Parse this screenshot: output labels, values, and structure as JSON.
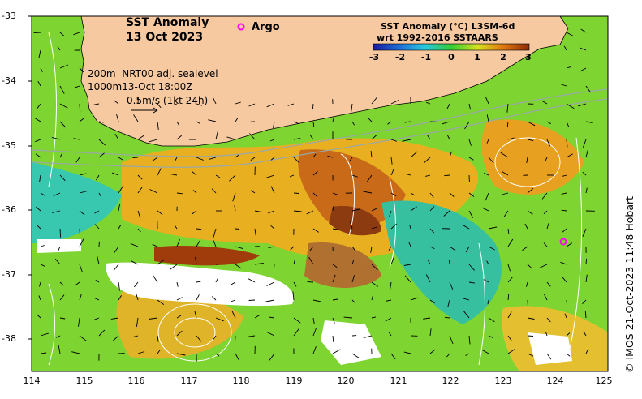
{
  "title": {
    "line1": "SST Anomaly",
    "line2": "13 Oct 2023"
  },
  "argo_label": "Argo",
  "legend": {
    "line1": "SST Anomaly (°C) L3SM-6d",
    "line2": "wrt 1992-2016 SSTAARS",
    "ticks": [
      "-3",
      "-2",
      "-1",
      "0",
      "1",
      "2",
      "3"
    ],
    "colors": [
      "#1a1aa0",
      "#1f6fd8",
      "#28c8e0",
      "#33cc33",
      "#d8e020",
      "#e07810",
      "#8c2a08"
    ]
  },
  "info": {
    "line1": "200m  NRT00 adj. sealevel",
    "line2": "1000m13-Oct 18:00Z",
    "line3": "0.5m/s (1kt 24h)"
  },
  "axes": {
    "y_ticks": [
      "-33",
      "-34",
      "-35",
      "-36",
      "-37",
      "-38"
    ],
    "x_ticks": [
      "114",
      "115",
      "116",
      "117",
      "118",
      "119",
      "120",
      "121",
      "122",
      "123",
      "124",
      "125"
    ]
  },
  "credit": "© IMOS 21-Oct-2023 11:48 Hobart",
  "colors": {
    "land": "#f7c9a0",
    "no_data": "#ffffff",
    "argo_marker": "#ff00ff"
  }
}
